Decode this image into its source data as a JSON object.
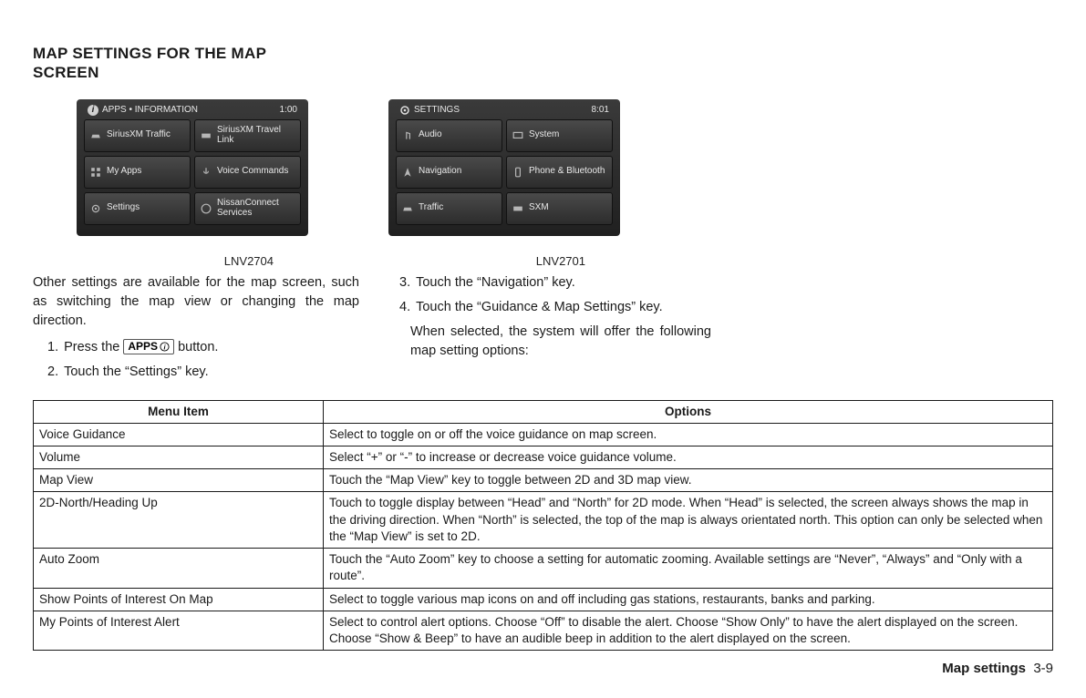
{
  "title_line1": "MAP SETTINGS FOR THE MAP",
  "title_line2": "SCREEN",
  "screenA": {
    "header": "APPS • INFORMATION",
    "time": "1:00",
    "buttons": [
      "SiriusXM Traffic",
      "SiriusXM Travel Link",
      "My Apps",
      "Voice Commands",
      "Settings",
      "NissanConnect Services"
    ],
    "caption": "LNV2704"
  },
  "screenB": {
    "header": "SETTINGS",
    "time": "8:01",
    "buttons": [
      "Audio",
      "System",
      "Navigation",
      "Phone & Bluetooth",
      "Traffic",
      "SXM"
    ],
    "caption": "LNV2701"
  },
  "para1": "Other settings are available for the map screen, such as switching the map view or changing the map direction.",
  "step1a": "Press the",
  "apps_label": "APPS",
  "step1b": "button.",
  "step2": "Touch the “Settings” key.",
  "step3": "Touch the “Navigation” key.",
  "step4": "Touch the “Guidance & Map Settings” key.",
  "para2": "When selected, the system will offer the following map setting options:",
  "table": {
    "col1": "Menu Item",
    "col2": "Options",
    "rows": [
      [
        "Voice Guidance",
        "Select to toggle on or off the voice guidance on map screen."
      ],
      [
        "Volume",
        "Select “+” or “-” to increase or decrease voice guidance volume."
      ],
      [
        "Map View",
        "Touch the “Map View” key to toggle between 2D and 3D map view."
      ],
      [
        "2D-North/Heading Up",
        "Touch to toggle display between “Head” and “North” for 2D mode. When “Head” is selected, the screen always shows the map in the driving direction. When “North” is selected, the top of the map is always orientated north. This option can only be selected when the “Map View” is set to 2D."
      ],
      [
        "Auto Zoom",
        "Touch the “Auto Zoom” key to choose a setting for automatic zooming. Available settings are “Never”, “Always” and “Only with a route”."
      ],
      [
        "Show Points of Interest On Map",
        "Select to toggle various map icons on and off including gas stations, restaurants, banks and parking."
      ],
      [
        "My Points of Interest Alert",
        "Select to control alert options. Choose “Off” to disable the alert. Choose “Show Only” to have the alert displayed on the screen. Choose “Show & Beep” to have an audible beep in addition to the alert displayed on the screen."
      ]
    ]
  },
  "footer_label": "Map settings",
  "footer_page": "3-9"
}
